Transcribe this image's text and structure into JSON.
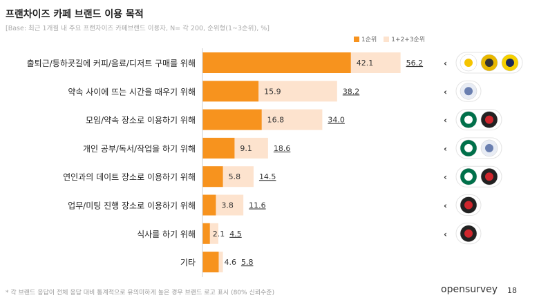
{
  "title": "프랜차이즈 카페 브랜드 이용 목적",
  "subtitle": "[Base: 최근 1개월 내 주요 프랜차이즈 카페브랜드 이용자, N= 각 200, 순위형(1~3순위), %]",
  "footnote": "* 각 브랜드 응답이 전체 응답 대비 통계적으로 유의미하게 높은 경우 브랜드 로고 표시 (80% 신뢰수준)",
  "brand": "opensurvey",
  "page_number": "18",
  "colors": {
    "rank1": "#F7931E",
    "rank123": "#FDE3CE"
  },
  "chart_data": {
    "type": "bar",
    "orientation": "horizontal",
    "stacked": false,
    "categories": [
      "출퇴근/등하굣길에 커피/음료/디저트 구매를 위해",
      "약속 사이에 뜨는 시간을 때우기 위해",
      "모임/약속 장소로 이용하기 위해",
      "개인 공부/독서/작업을 하기 위해",
      "연인과의 데이트 장소로 이용하기 위해",
      "업무/미팅 진행 장소로 이용하기 위해",
      "식사를 하기 위해",
      "기타"
    ],
    "series": [
      {
        "name": "1순위",
        "values": [
          42.1,
          15.9,
          16.8,
          9.1,
          5.8,
          3.8,
          2.1,
          4.6
        ]
      },
      {
        "name": "1+2+3순위",
        "values": [
          56.2,
          38.2,
          34.0,
          18.6,
          14.5,
          11.6,
          4.5,
          5.8
        ]
      }
    ],
    "legend": "top-right",
    "grid": false,
    "brand_logos": [
      [
        "yellow-cup-logo",
        "round-coffee-logo",
        "person-portrait-logo"
      ],
      [
        "gray-blue-circle-logo"
      ],
      [
        "starbucks-logo",
        "red-black-logo"
      ],
      [
        "starbucks-logo",
        "gray-blue-circle-logo"
      ],
      [
        "starbucks-logo",
        "red-black-logo"
      ],
      [
        "red-black-logo"
      ],
      [
        "red-black-logo"
      ],
      []
    ]
  }
}
